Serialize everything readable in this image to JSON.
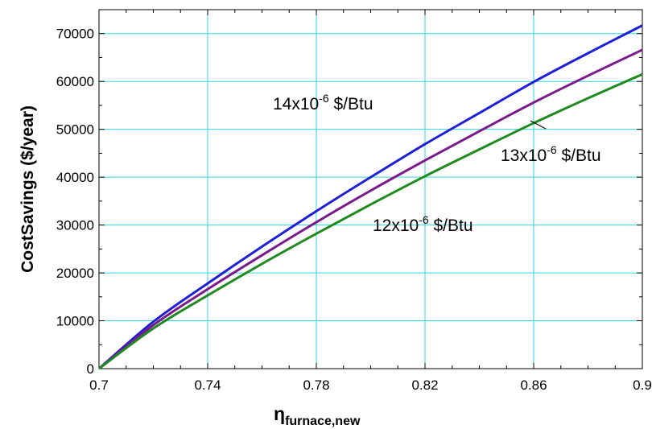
{
  "chart_data": {
    "type": "line",
    "ylabel": "CostSavings ($/year)",
    "xlabel_symbol": "η",
    "xlabel_subscript": "furnace,new",
    "xlim": [
      0.7,
      0.9
    ],
    "ylim": [
      0,
      75000
    ],
    "grid": true,
    "xticks": [
      0.7,
      0.74,
      0.78,
      0.82,
      0.86,
      0.9
    ],
    "xtick_labels": [
      "0.7",
      "0.74",
      "0.78",
      "0.82",
      "0.86",
      "0.9"
    ],
    "yticks": [
      0,
      10000,
      20000,
      30000,
      40000,
      50000,
      60000,
      70000
    ],
    "ytick_labels": [
      "0",
      "10000",
      "20000",
      "30000",
      "40000",
      "50000",
      "60000",
      "70000"
    ],
    "x": [
      0.7,
      0.72,
      0.74,
      0.76,
      0.78,
      0.8,
      0.82,
      0.84,
      0.86,
      0.88,
      0.9
    ],
    "series": [
      {
        "label_base": "14x10",
        "label_exp": "-6",
        "label_unit": " $/Btu",
        "color": "#1f1fd6",
        "values": [
          0,
          9800,
          17800,
          25500,
          32900,
          40000,
          46900,
          53400,
          59900,
          65900,
          71700
        ]
      },
      {
        "label_base": "13x10",
        "label_exp": "-6",
        "label_unit": " $/Btu",
        "color": "#7b1a8c",
        "values": [
          0,
          9100,
          16600,
          23700,
          30600,
          37200,
          43500,
          49600,
          55600,
          61200,
          66600
        ]
      },
      {
        "label_base": "12x10",
        "label_exp": "-6",
        "label_unit": " $/Btu",
        "color": "#1f8a1f",
        "values": [
          0,
          8400,
          15300,
          21900,
          28200,
          34300,
          40200,
          45800,
          51300,
          56500,
          61500
        ]
      }
    ]
  }
}
